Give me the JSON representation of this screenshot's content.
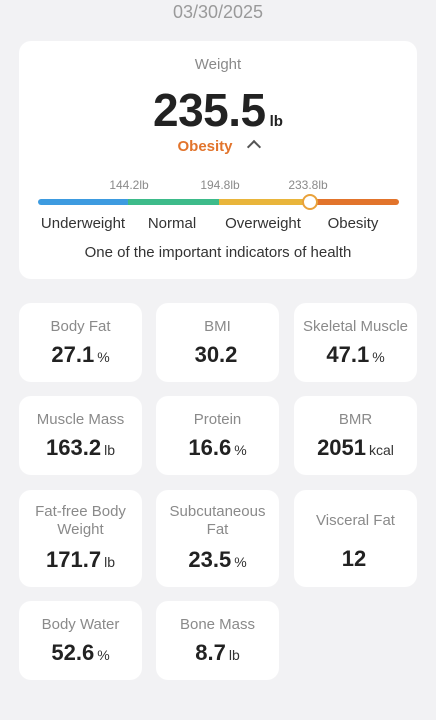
{
  "date": "03/30/2025",
  "weight": {
    "title": "Weight",
    "value": "235.5",
    "unit": "lb",
    "status": "Obesity",
    "status_color": "#e2742c",
    "thresholds": [
      "144.2lb",
      "194.8lb",
      "233.8lb"
    ],
    "ranges": [
      {
        "label": "Underweight",
        "color": "#3d9be0"
      },
      {
        "label": "Normal",
        "color": "#3dbb8a"
      },
      {
        "label": "Overweight",
        "color": "#e9b53b"
      },
      {
        "label": "Obesity",
        "color": "#e2742c"
      }
    ],
    "note": "One of the important indicators of health"
  },
  "metrics": [
    {
      "label": "Body Fat",
      "value": "27.1",
      "unit": "%"
    },
    {
      "label": "BMI",
      "value": "30.2",
      "unit": ""
    },
    {
      "label": "Skeletal Muscle",
      "value": "47.1",
      "unit": "%"
    },
    {
      "label": "Muscle Mass",
      "value": "163.2",
      "unit": "lb"
    },
    {
      "label": "Protein",
      "value": "16.6",
      "unit": "%"
    },
    {
      "label": "BMR",
      "value": "2051",
      "unit": "kcal"
    },
    {
      "label": "Fat-free Body Weight",
      "value": "171.7",
      "unit": "lb"
    },
    {
      "label": "Subcutaneous Fat",
      "value": "23.5",
      "unit": "%"
    },
    {
      "label": "Visceral Fat",
      "value": "12",
      "unit": ""
    },
    {
      "label": "Body Water",
      "value": "52.6",
      "unit": "%"
    },
    {
      "label": "Bone Mass",
      "value": "8.7",
      "unit": "lb"
    }
  ]
}
